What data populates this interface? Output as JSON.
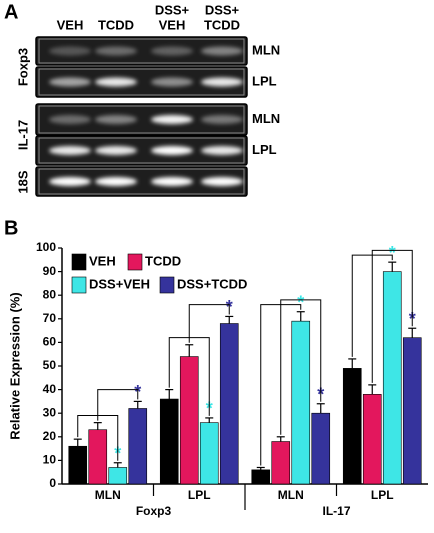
{
  "panel_a": {
    "label": "A",
    "columns": [
      "VEH",
      "TCDD",
      [
        "DSS+",
        "VEH"
      ],
      [
        "DSS+",
        "TCDD"
      ]
    ],
    "genes": [
      "Foxp3",
      "IL-17",
      "18S"
    ],
    "tissues": [
      "MLN",
      "LPL",
      "MLN",
      "LPL"
    ]
  },
  "chart_data": {
    "type": "bar",
    "panel_label": "B",
    "y_label": "Relative Expression (%)",
    "categories": [
      "MLN",
      "LPL",
      "MLN",
      "LPL"
    ],
    "groups": [
      "Foxp3",
      "IL-17"
    ],
    "series": [
      {
        "name": "VEH",
        "color": "#000000",
        "values": [
          16,
          36,
          6,
          49
        ],
        "errors": [
          3,
          4,
          1,
          4
        ]
      },
      {
        "name": "TCDD",
        "color": "#e3175d",
        "values": [
          23,
          54,
          18,
          38
        ],
        "errors": [
          3,
          5,
          2,
          4
        ]
      },
      {
        "name": "DSS+VEH",
        "color": "#3ee6e6",
        "values": [
          7,
          26,
          69,
          90
        ],
        "errors": [
          2,
          2,
          4,
          4
        ],
        "significance": [
          "*",
          "*",
          "*",
          "*"
        ]
      },
      {
        "name": "DSS+TCDD",
        "color": "#35339c",
        "values": [
          32,
          68,
          30,
          62
        ],
        "errors": [
          3,
          3,
          4,
          4
        ],
        "significance": [
          "*",
          "*",
          "*",
          "*"
        ]
      }
    ],
    "ylim": [
      0,
      100
    ],
    "yticks": [
      0,
      10,
      20,
      30,
      40,
      50,
      60,
      70,
      80,
      90,
      100
    ]
  }
}
